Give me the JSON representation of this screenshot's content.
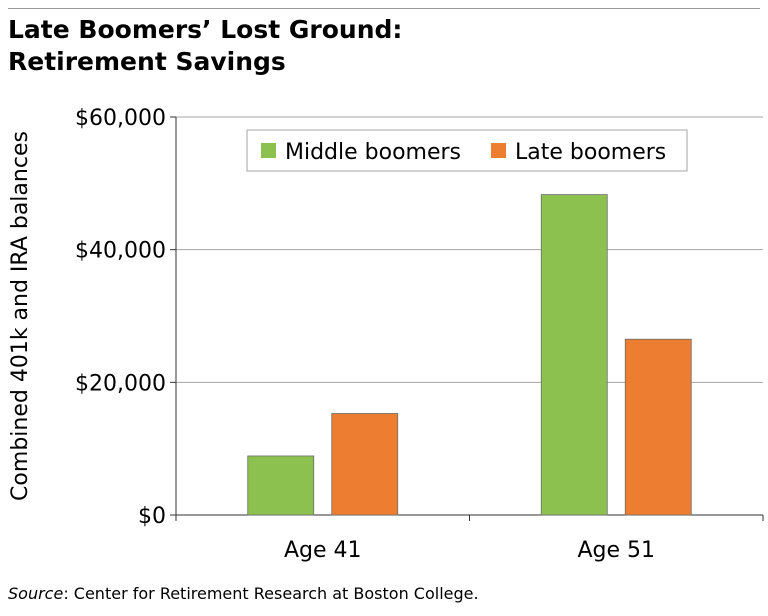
{
  "title_line1": "Late Boomers’ Lost Ground:",
  "title_line2": "Retirement Savings",
  "source_label": "Source",
  "source_text": ": Center for Retirement Research at Boston College.",
  "chart_data": {
    "type": "bar",
    "categories": [
      "Age 41",
      "Age 51"
    ],
    "series": [
      {
        "name": "Middle boomers",
        "values": [
          8900,
          48300
        ],
        "color": "#8cc150"
      },
      {
        "name": "Late boomers",
        "values": [
          15300,
          26500
        ],
        "color": "#ed7d31"
      }
    ],
    "ylabel": "Combined 401k and IRA balances",
    "ylim": [
      0,
      60000
    ],
    "yticks": [
      0,
      20000,
      40000,
      60000
    ],
    "ytick_labels": [
      "$0",
      "$20,000",
      "$40,000",
      "$60,000"
    ],
    "grid": true,
    "legend_position": "top-right"
  }
}
